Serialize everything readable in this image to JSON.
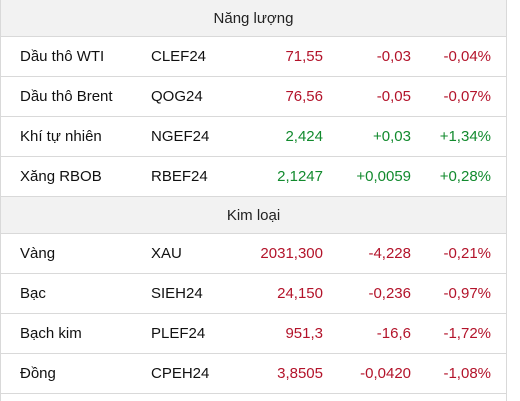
{
  "colors": {
    "up": "#128a2e",
    "down": "#b3132a",
    "header_bg": "#f2f2f2"
  },
  "sections": [
    {
      "title": "Năng lượng",
      "rows": [
        {
          "name": "Dầu thô WTI",
          "symbol": "CLEF24",
          "price": "71,55",
          "change": "-0,03",
          "percent": "-0,04%",
          "direction": "down"
        },
        {
          "name": "Dầu thô Brent",
          "symbol": "QOG24",
          "price": "76,56",
          "change": "-0,05",
          "percent": "-0,07%",
          "direction": "down"
        },
        {
          "name": "Khí tự nhiên",
          "symbol": "NGEF24",
          "price": "2,424",
          "change": "+0,03",
          "percent": "+1,34%",
          "direction": "up"
        },
        {
          "name": "Xăng RBOB",
          "symbol": "RBEF24",
          "price": "2,1247",
          "change": "+0,0059",
          "percent": "+0,28%",
          "direction": "up"
        }
      ]
    },
    {
      "title": "Kim loại",
      "rows": [
        {
          "name": "Vàng",
          "symbol": "XAU",
          "price": "2031,300",
          "change": "-4,228",
          "percent": "-0,21%",
          "direction": "down"
        },
        {
          "name": "Bạc",
          "symbol": "SIEH24",
          "price": "24,150",
          "change": "-0,236",
          "percent": "-0,97%",
          "direction": "down"
        },
        {
          "name": "Bạch kim",
          "symbol": "PLEF24",
          "price": "951,3",
          "change": "-16,6",
          "percent": "-1,72%",
          "direction": "down"
        },
        {
          "name": "Đồng",
          "symbol": "CPEH24",
          "price": "3,8505",
          "change": "-0,0420",
          "percent": "-1,08%",
          "direction": "down"
        }
      ]
    }
  ]
}
